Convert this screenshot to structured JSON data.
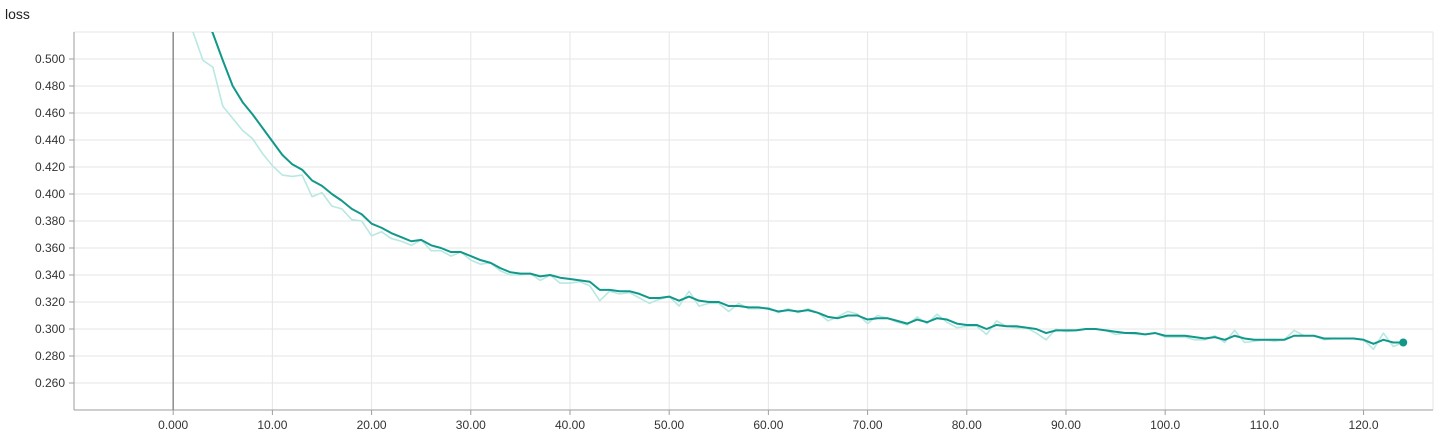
{
  "chart_data": {
    "type": "line",
    "title": "loss",
    "xlabel": "",
    "ylabel": "",
    "xlim": [
      -10,
      127
    ],
    "ylim": [
      0.24,
      0.52
    ],
    "x_ticks": [
      0,
      10,
      20,
      30,
      40,
      50,
      60,
      70,
      80,
      90,
      100,
      110,
      120
    ],
    "x_tick_labels": [
      "0.000",
      "10.00",
      "20.00",
      "30.00",
      "40.00",
      "50.00",
      "60.00",
      "70.00",
      "80.00",
      "90.00",
      "100.0",
      "110.0",
      "120.0"
    ],
    "y_ticks": [
      0.26,
      0.28,
      0.3,
      0.32,
      0.34,
      0.36,
      0.38,
      0.4,
      0.42,
      0.44,
      0.46,
      0.48,
      0.5
    ],
    "y_tick_labels": [
      "0.260",
      "0.280",
      "0.300",
      "0.320",
      "0.340",
      "0.360",
      "0.380",
      "0.400",
      "0.420",
      "0.440",
      "0.460",
      "0.480",
      "0.500"
    ],
    "grid": true,
    "colors": {
      "smoothed": "#12988a",
      "raw": "#b9e8e1",
      "zero_line": "#8c8c8c"
    },
    "series": [
      {
        "x": [
          2,
          3,
          4,
          5,
          6,
          7,
          8,
          9,
          10,
          11,
          12,
          13,
          14,
          15,
          16,
          17,
          18,
          19,
          20,
          21,
          22,
          23,
          24,
          25,
          26,
          27,
          28,
          29,
          30,
          31,
          32,
          33,
          34,
          35,
          36,
          37,
          38,
          39,
          40,
          41,
          42,
          43,
          44,
          45,
          46,
          47,
          48,
          49,
          50,
          51,
          52,
          53,
          54,
          55,
          56,
          57,
          58,
          59,
          60,
          61,
          62,
          63,
          64,
          65,
          66,
          67,
          68,
          69,
          70,
          71,
          72,
          73,
          74,
          75,
          76,
          77,
          78,
          79,
          80,
          81,
          82,
          83,
          84,
          85,
          86,
          87,
          88,
          89,
          90,
          91,
          92,
          93,
          94,
          95,
          96,
          97,
          98,
          99,
          100,
          101,
          102,
          103,
          104,
          105,
          106,
          107,
          108,
          109,
          110,
          111,
          112,
          113,
          114,
          115,
          116,
          117,
          118,
          119,
          120,
          121,
          122,
          123,
          124
        ],
        "values": [
          0.52,
          0.499,
          0.494,
          0.465,
          0.456,
          0.447,
          0.441,
          0.43,
          0.421,
          0.414,
          0.413,
          0.414,
          0.398,
          0.401,
          0.391,
          0.389,
          0.381,
          0.38,
          0.369,
          0.372,
          0.367,
          0.365,
          0.362,
          0.366,
          0.358,
          0.358,
          0.354,
          0.357,
          0.351,
          0.348,
          0.349,
          0.343,
          0.34,
          0.34,
          0.341,
          0.336,
          0.34,
          0.334,
          0.334,
          0.335,
          0.332,
          0.321,
          0.328,
          0.326,
          0.327,
          0.323,
          0.319,
          0.322,
          0.324,
          0.317,
          0.328,
          0.317,
          0.319,
          0.319,
          0.313,
          0.319,
          0.315,
          0.315,
          0.316,
          0.312,
          0.315,
          0.312,
          0.315,
          0.312,
          0.306,
          0.309,
          0.313,
          0.311,
          0.304,
          0.31,
          0.308,
          0.305,
          0.303,
          0.309,
          0.304,
          0.311,
          0.305,
          0.301,
          0.302,
          0.302,
          0.296,
          0.306,
          0.302,
          0.301,
          0.301,
          0.297,
          0.292,
          0.3,
          0.298,
          0.299,
          0.3,
          0.3,
          0.299,
          0.296,
          0.297,
          0.296,
          0.296,
          0.297,
          0.294,
          0.294,
          0.294,
          0.292,
          0.292,
          0.295,
          0.29,
          0.299,
          0.29,
          0.291,
          0.292,
          0.291,
          0.292,
          0.299,
          0.295,
          0.295,
          0.292,
          0.293,
          0.293,
          0.293,
          0.292,
          0.285,
          0.297,
          0.287,
          0.29
        ]
      },
      {
        "x": [
          3,
          4,
          5,
          6,
          7,
          8,
          9,
          10,
          11,
          12,
          13,
          14,
          15,
          16,
          17,
          18,
          19,
          20,
          21,
          22,
          23,
          24,
          25,
          26,
          27,
          28,
          29,
          30,
          31,
          32,
          33,
          34,
          35,
          36,
          37,
          38,
          39,
          40,
          41,
          42,
          43,
          44,
          45,
          46,
          47,
          48,
          49,
          50,
          51,
          52,
          53,
          54,
          55,
          56,
          57,
          58,
          59,
          60,
          61,
          62,
          63,
          64,
          65,
          66,
          67,
          68,
          69,
          70,
          71,
          72,
          73,
          74,
          75,
          76,
          77,
          78,
          79,
          80,
          81,
          82,
          83,
          84,
          85,
          86,
          87,
          88,
          89,
          90,
          91,
          92,
          93,
          94,
          95,
          96,
          97,
          98,
          99,
          100,
          101,
          102,
          103,
          104,
          105,
          106,
          107,
          108,
          109,
          110,
          111,
          112,
          113,
          114,
          115,
          116,
          117,
          118,
          119,
          120,
          121,
          122,
          123,
          124
        ],
        "values": [
          0.535,
          0.519,
          0.499,
          0.48,
          0.468,
          0.459,
          0.449,
          0.439,
          0.429,
          0.422,
          0.418,
          0.41,
          0.406,
          0.4,
          0.395,
          0.389,
          0.385,
          0.378,
          0.375,
          0.371,
          0.368,
          0.365,
          0.366,
          0.362,
          0.36,
          0.357,
          0.357,
          0.354,
          0.351,
          0.349,
          0.345,
          0.342,
          0.341,
          0.341,
          0.339,
          0.34,
          0.338,
          0.337,
          0.336,
          0.335,
          0.329,
          0.329,
          0.328,
          0.328,
          0.326,
          0.323,
          0.323,
          0.324,
          0.321,
          0.324,
          0.321,
          0.32,
          0.32,
          0.317,
          0.317,
          0.316,
          0.316,
          0.315,
          0.313,
          0.314,
          0.313,
          0.314,
          0.312,
          0.309,
          0.308,
          0.31,
          0.31,
          0.307,
          0.308,
          0.308,
          0.306,
          0.304,
          0.307,
          0.305,
          0.308,
          0.307,
          0.304,
          0.303,
          0.303,
          0.3,
          0.303,
          0.302,
          0.302,
          0.301,
          0.3,
          0.297,
          0.299,
          0.299,
          0.299,
          0.3,
          0.3,
          0.299,
          0.298,
          0.297,
          0.297,
          0.296,
          0.297,
          0.295,
          0.295,
          0.295,
          0.294,
          0.293,
          0.294,
          0.292,
          0.295,
          0.293,
          0.292,
          0.292,
          0.292,
          0.292,
          0.295,
          0.295,
          0.295,
          0.293,
          0.293,
          0.293,
          0.293,
          0.292,
          0.289,
          0.292,
          0.29,
          0.29
        ]
      }
    ],
    "last_point": {
      "x": 124,
      "y": 0.29
    }
  }
}
